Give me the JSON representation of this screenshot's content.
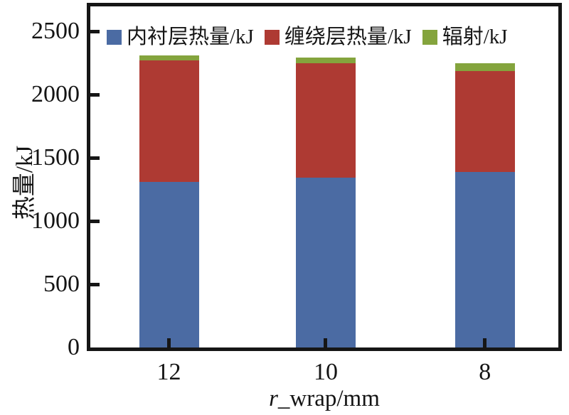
{
  "chart_data": {
    "type": "bar",
    "stacked": true,
    "title": "",
    "ylabel": "热量/kJ",
    "xlabel_italic": "r",
    "xlabel_rest": "_wrap/mm",
    "categories": [
      "12",
      "10",
      "8"
    ],
    "series": [
      {
        "name": "内衬层热量/kJ",
        "color": "#4b6ba3",
        "values": [
          1310,
          1345,
          1390
        ]
      },
      {
        "name": "缠绕层热量/kJ",
        "color": "#ae3a33",
        "values": [
          960,
          900,
          795
        ]
      },
      {
        "name": "辐射/kJ",
        "color": "#84a43d",
        "values": [
          40,
          50,
          65
        ]
      }
    ],
    "y_tick_labels": [
      "0",
      "500",
      "1000",
      "1500",
      "2000",
      "2500"
    ],
    "y_tick_values": [
      0,
      500,
      1000,
      1500,
      2000,
      2500
    ],
    "ylim": [
      0,
      2720
    ],
    "grid": false,
    "legend_position": "top-inside"
  },
  "colors": {
    "frame": "#161616",
    "background": "#ffffff",
    "text": "#141414"
  }
}
